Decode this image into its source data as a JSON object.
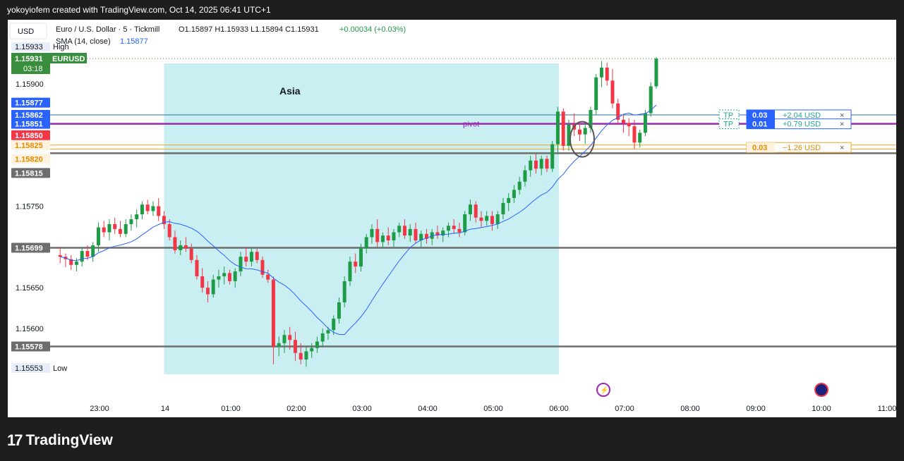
{
  "header": {
    "caption": "yokoyiofem created with TradingView.com, Oct 14, 2025 06:41 UTC+1"
  },
  "legend": {
    "currency_button": "USD",
    "symbol_line": "Euro / U.S. Dollar · 5 · Tickmill",
    "ohlc": "O1.15897  H1.15933  L1.15894  C1.15931",
    "change": "+0.00034 (+0.03%)",
    "sma_label": "SMA (14, close)",
    "sma_value": "1.15877"
  },
  "colors": {
    "up": "#26a69a",
    "up_body": "#1e9b45",
    "down": "#f23645",
    "sma": "#2962ff",
    "session": "#c9eff3",
    "pivot": "#9c27b0",
    "price_label": "#388e3c",
    "orange": "#f5a623",
    "level_grey": "#6d6d6d"
  },
  "chart_data": {
    "type": "candlestick",
    "title": "Euro / U.S. Dollar · 5 · Tickmill",
    "ylim": [
      1.155,
      1.1597
    ],
    "y_ticks": [
      "1.15900",
      "1.15750",
      "1.15650",
      "1.15600"
    ],
    "x_ticks": [
      "23:00",
      "14",
      "01:00",
      "02:00",
      "03:00",
      "04:00",
      "05:00",
      "06:00",
      "07:00",
      "08:00",
      "09:00",
      "10:00",
      "11:00"
    ],
    "candle_interval_minutes": 5,
    "first_candle_time": "22:24",
    "candles": [
      [
        1.1569,
        1.157,
        1.1568,
        1.15688
      ],
      [
        1.15688,
        1.15692,
        1.15675,
        1.15685
      ],
      [
        1.15685,
        1.1569,
        1.15672,
        1.15678
      ],
      [
        1.15678,
        1.15686,
        1.1567,
        1.15682
      ],
      [
        1.15682,
        1.157,
        1.15676,
        1.15695
      ],
      [
        1.15695,
        1.15702,
        1.15684,
        1.15688
      ],
      [
        1.15688,
        1.15706,
        1.15682,
        1.15702
      ],
      [
        1.15702,
        1.1573,
        1.15694,
        1.15724
      ],
      [
        1.15724,
        1.15732,
        1.15712,
        1.15718
      ],
      [
        1.15718,
        1.15734,
        1.15708,
        1.15728
      ],
      [
        1.15728,
        1.15736,
        1.15716,
        1.15722
      ],
      [
        1.15722,
        1.15732,
        1.15712,
        1.15716
      ],
      [
        1.15716,
        1.15734,
        1.15712,
        1.15728
      ],
      [
        1.15728,
        1.1574,
        1.1572,
        1.15734
      ],
      [
        1.15734,
        1.15746,
        1.15724,
        1.1574
      ],
      [
        1.1574,
        1.15756,
        1.15734,
        1.15752
      ],
      [
        1.15752,
        1.15758,
        1.1574,
        1.15744
      ],
      [
        1.15744,
        1.15756,
        1.15738,
        1.1575
      ],
      [
        1.1575,
        1.1576,
        1.15732,
        1.15738
      ],
      [
        1.15738,
        1.15744,
        1.15722,
        1.15728
      ],
      [
        1.15728,
        1.15734,
        1.15708,
        1.15712
      ],
      [
        1.15712,
        1.1572,
        1.15692,
        1.15696
      ],
      [
        1.15696,
        1.15708,
        1.1569,
        1.15702
      ],
      [
        1.15702,
        1.15712,
        1.15694,
        1.15698
      ],
      [
        1.15698,
        1.15704,
        1.1568,
        1.15684
      ],
      [
        1.15684,
        1.1569,
        1.1566,
        1.15664
      ],
      [
        1.15664,
        1.15674,
        1.15644,
        1.1565
      ],
      [
        1.1565,
        1.15658,
        1.15632,
        1.15642
      ],
      [
        1.15642,
        1.15666,
        1.15638,
        1.1566
      ],
      [
        1.1566,
        1.15672,
        1.1565,
        1.15664
      ],
      [
        1.15664,
        1.15676,
        1.15654,
        1.15668
      ],
      [
        1.15668,
        1.15672,
        1.15654,
        1.15658
      ],
      [
        1.15658,
        1.15674,
        1.1565,
        1.1567
      ],
      [
        1.1567,
        1.15694,
        1.15664,
        1.15688
      ],
      [
        1.15688,
        1.157,
        1.15676,
        1.15682
      ],
      [
        1.15682,
        1.15698,
        1.15676,
        1.15694
      ],
      [
        1.15694,
        1.15698,
        1.1568,
        1.15684
      ],
      [
        1.15684,
        1.15688,
        1.15662,
        1.15666
      ],
      [
        1.15666,
        1.15672,
        1.15656,
        1.1566
      ],
      [
        1.1566,
        1.15664,
        1.15556,
        1.15578
      ],
      [
        1.15578,
        1.1559,
        1.15566,
        1.15582
      ],
      [
        1.15582,
        1.15598,
        1.1557,
        1.15592
      ],
      [
        1.15592,
        1.15602,
        1.15574,
        1.15586
      ],
      [
        1.15586,
        1.15596,
        1.1556,
        1.1557
      ],
      [
        1.1557,
        1.15582,
        1.15556,
        1.15562
      ],
      [
        1.15562,
        1.15578,
        1.15553,
        1.15572
      ],
      [
        1.15572,
        1.15582,
        1.15564,
        1.15576
      ],
      [
        1.15576,
        1.1559,
        1.1557,
        1.15584
      ],
      [
        1.15584,
        1.156,
        1.15578,
        1.15594
      ],
      [
        1.15594,
        1.15602,
        1.15586,
        1.15598
      ],
      [
        1.15598,
        1.15616,
        1.15592,
        1.15612
      ],
      [
        1.15612,
        1.15638,
        1.15606,
        1.15632
      ],
      [
        1.15632,
        1.15664,
        1.15626,
        1.15658
      ],
      [
        1.15658,
        1.15688,
        1.15652,
        1.15682
      ],
      [
        1.15682,
        1.15692,
        1.15668,
        1.15676
      ],
      [
        1.15676,
        1.15704,
        1.1567,
        1.15698
      ],
      [
        1.15698,
        1.15716,
        1.15692,
        1.15712
      ],
      [
        1.15712,
        1.15728,
        1.15704,
        1.15722
      ],
      [
        1.15722,
        1.15734,
        1.157,
        1.15706
      ],
      [
        1.15706,
        1.15718,
        1.15698,
        1.15714
      ],
      [
        1.15714,
        1.15724,
        1.15702,
        1.15708
      ],
      [
        1.15708,
        1.15722,
        1.157,
        1.15718
      ],
      [
        1.15718,
        1.1573,
        1.15712,
        1.15726
      ],
      [
        1.15726,
        1.15734,
        1.1571,
        1.15714
      ],
      [
        1.15714,
        1.15728,
        1.15706,
        1.15722
      ],
      [
        1.15722,
        1.1573,
        1.15704,
        1.15708
      ],
      [
        1.15708,
        1.1572,
        1.157,
        1.15716
      ],
      [
        1.15716,
        1.15722,
        1.15704,
        1.1571
      ],
      [
        1.1571,
        1.15722,
        1.15702,
        1.15718
      ],
      [
        1.15718,
        1.15726,
        1.1571,
        1.15714
      ],
      [
        1.15714,
        1.15724,
        1.15706,
        1.1572
      ],
      [
        1.1572,
        1.1573,
        1.15712,
        1.15726
      ],
      [
        1.15726,
        1.15734,
        1.15716,
        1.15722
      ],
      [
        1.15722,
        1.1573,
        1.15712,
        1.15718
      ],
      [
        1.15718,
        1.15744,
        1.15714,
        1.1574
      ],
      [
        1.1574,
        1.15758,
        1.15732,
        1.15752
      ],
      [
        1.15752,
        1.15756,
        1.1573,
        1.15736
      ],
      [
        1.15736,
        1.15744,
        1.15724,
        1.15732
      ],
      [
        1.15732,
        1.15744,
        1.15726,
        1.15738
      ],
      [
        1.15738,
        1.15744,
        1.1572,
        1.15728
      ],
      [
        1.15728,
        1.15744,
        1.15722,
        1.1574
      ],
      [
        1.1574,
        1.1576,
        1.15734,
        1.15754
      ],
      [
        1.15754,
        1.15766,
        1.15744,
        1.1576
      ],
      [
        1.1576,
        1.15776,
        1.15754,
        1.1577
      ],
      [
        1.1577,
        1.15786,
        1.15764,
        1.1578
      ],
      [
        1.1578,
        1.158,
        1.15774,
        1.15794
      ],
      [
        1.15794,
        1.15812,
        1.15786,
        1.15806
      ],
      [
        1.15806,
        1.15814,
        1.1579,
        1.15796
      ],
      [
        1.15796,
        1.15812,
        1.15788,
        1.15808
      ],
      [
        1.15808,
        1.15812,
        1.15792,
        1.15796
      ],
      [
        1.15796,
        1.1583,
        1.15792,
        1.15826
      ],
      [
        1.15826,
        1.15872,
        1.15816,
        1.15866
      ],
      [
        1.15866,
        1.1587,
        1.15818,
        1.15824
      ],
      [
        1.15824,
        1.15856,
        1.15818,
        1.1585
      ],
      [
        1.1585,
        1.15864,
        1.15836,
        1.15844
      ],
      [
        1.15844,
        1.15852,
        1.1583,
        1.15838
      ],
      [
        1.15838,
        1.15852,
        1.15826,
        1.15846
      ],
      [
        1.15846,
        1.15872,
        1.1584,
        1.15868
      ],
      [
        1.15868,
        1.15912,
        1.15862,
        1.15908
      ],
      [
        1.15908,
        1.15928,
        1.15896,
        1.1592
      ],
      [
        1.1592,
        1.15926,
        1.15898,
        1.15904
      ],
      [
        1.15904,
        1.15918,
        1.1587,
        1.15876
      ],
      [
        1.15876,
        1.15882,
        1.1585,
        1.15856
      ],
      [
        1.15856,
        1.15862,
        1.1584,
        1.15852
      ],
      [
        1.15852,
        1.15858,
        1.15836,
        1.15848
      ],
      [
        1.15848,
        1.15856,
        1.1582,
        1.15828
      ],
      [
        1.15828,
        1.15844,
        1.15822,
        1.1584
      ],
      [
        1.1584,
        1.15868,
        1.15836,
        1.15864
      ],
      [
        1.15864,
        1.15902,
        1.1586,
        1.15897
      ],
      [
        1.15897,
        1.15933,
        1.15894,
        1.15931
      ]
    ],
    "sma": {
      "name": "SMA (14, close)",
      "last": 1.15877
    },
    "session": {
      "label": "Asia",
      "start": "23:59",
      "end": "06:00"
    },
    "pivot_label": "pivot",
    "levels": [
      {
        "price": 1.15862,
        "label": "1.15862",
        "kind": "tp"
      },
      {
        "price": 1.15851,
        "label": "1.15851",
        "kind": "pivot"
      },
      {
        "price": 1.15825,
        "label": "1.15825",
        "kind": "orange"
      },
      {
        "price": 1.1582,
        "label": "1.15820",
        "kind": "orange"
      },
      {
        "price": 1.15815,
        "label": "1.15815",
        "kind": "grey"
      },
      {
        "price": 1.15699,
        "label": "1.15699",
        "kind": "grey"
      },
      {
        "price": 1.15578,
        "label": "1.15578",
        "kind": "grey"
      }
    ],
    "price_labels": {
      "high_value": "1.15933",
      "high_text": "High",
      "current_value": "1.15931",
      "countdown": "03:18",
      "symbol": "EURUSD",
      "sma_value": "1.15877",
      "sell_value": "1.15850",
      "low_value": "1.15553",
      "low_text": "Low"
    },
    "orders": [
      {
        "tag": "TP",
        "qty": "0.03",
        "pnl": "+2.04 USD",
        "price": 1.15862
      },
      {
        "tag": "TP",
        "qty": "0.01",
        "pnl": "+0.79 USD",
        "price": 1.15851
      },
      {
        "tag": "",
        "qty": "0.03",
        "pnl": "−1.26 USD",
        "price": 1.15822
      }
    ],
    "close_icon": "×"
  },
  "footer": {
    "logo_glyph": "17",
    "brand": "TradingView"
  }
}
